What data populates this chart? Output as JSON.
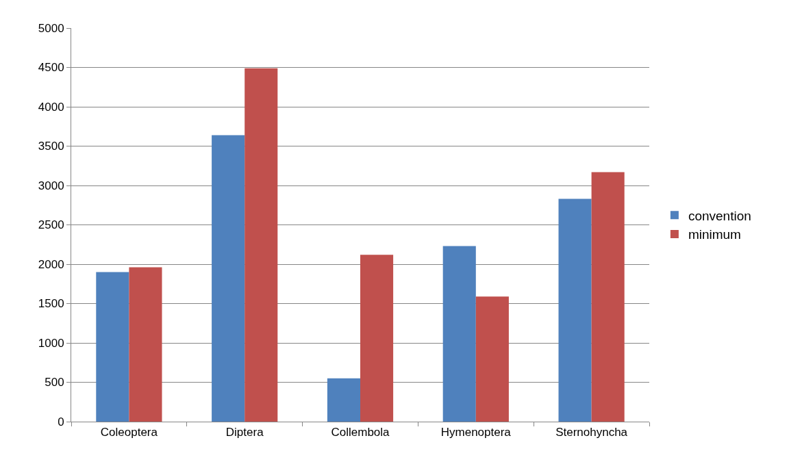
{
  "chart_data": {
    "type": "bar",
    "categories": [
      "Coleoptera",
      "Diptera",
      "Collembola",
      "Hymenoptera",
      "Sternohyncha"
    ],
    "series": [
      {
        "name": "convention",
        "color": "#4f81bd",
        "values": [
          1900,
          3640,
          550,
          2230,
          2830
        ]
      },
      {
        "name": "minimum",
        "color": "#c0504d",
        "values": [
          1960,
          4490,
          2120,
          1590,
          3170
        ]
      }
    ],
    "ylim": [
      0,
      5000
    ],
    "yticks": [
      0,
      500,
      1000,
      1500,
      2000,
      2500,
      3000,
      3500,
      4000,
      4500,
      5000
    ],
    "grid": "y",
    "legend": "right"
  }
}
